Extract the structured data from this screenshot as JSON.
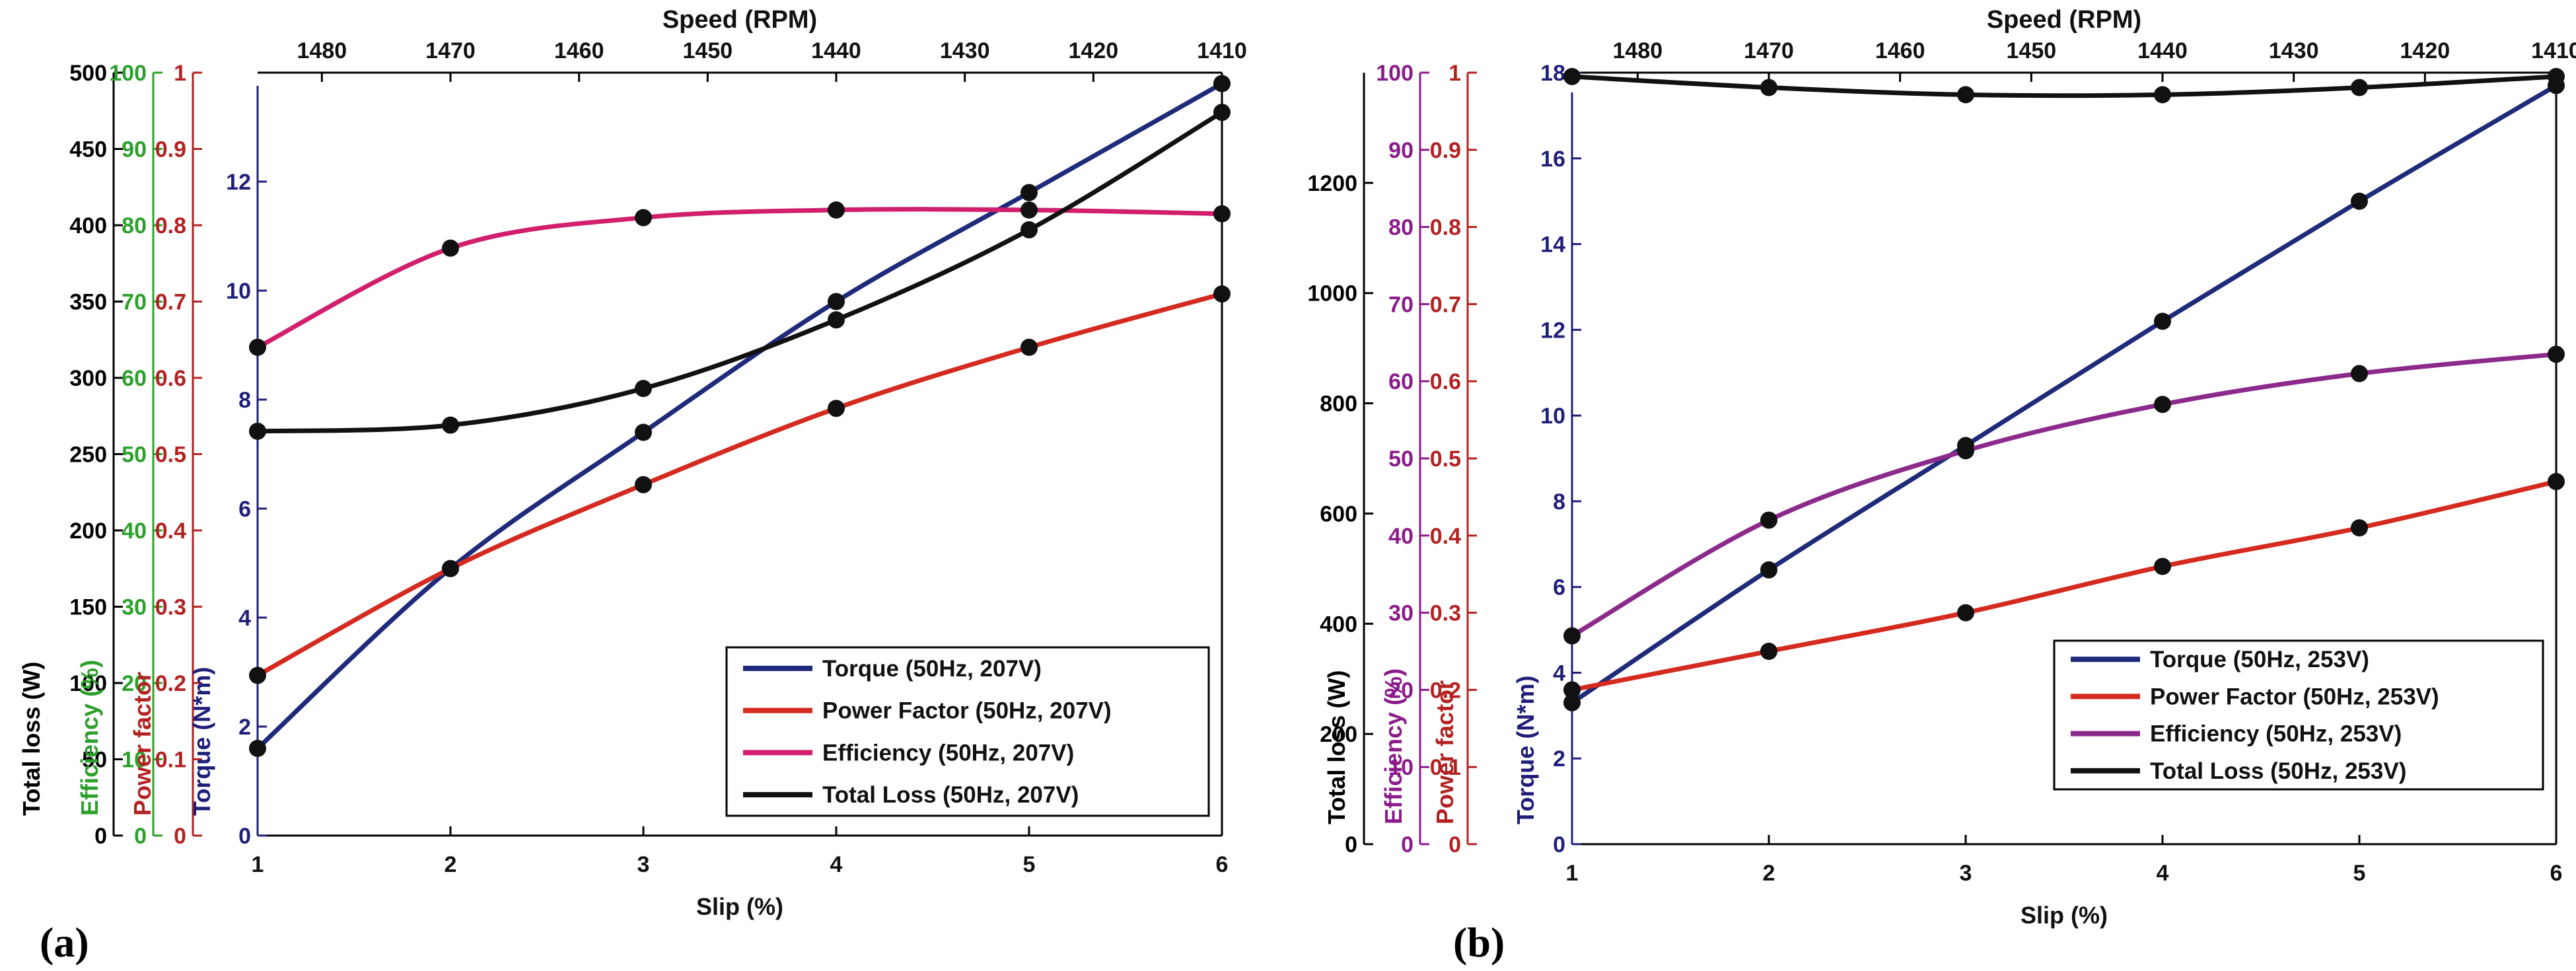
{
  "chart_data": [
    {
      "type": "line",
      "panel_label": "(a)",
      "title": "",
      "xlabel": "Slip (%)",
      "x2label": "Speed (RPM)",
      "xlim": [
        1,
        6
      ],
      "x_ticks": [
        "1",
        "2",
        "3",
        "4",
        "5",
        "6"
      ],
      "x2_ticks": [
        "1480",
        "1470",
        "1460",
        "1450",
        "1440",
        "1430",
        "1420",
        "1410"
      ],
      "axes": [
        {
          "id": "loss",
          "label": "Total loss (W)",
          "color": "#000000",
          "ylim": [
            0,
            500
          ],
          "ticks": [
            "0",
            "50",
            "100",
            "150",
            "200",
            "250",
            "300",
            "350",
            "400",
            "450",
            "500"
          ]
        },
        {
          "id": "eff",
          "label": "Efficiency (%)",
          "color": "#2ca02c",
          "ylim": [
            0,
            100
          ],
          "ticks": [
            "0",
            "10",
            "20",
            "30",
            "40",
            "50",
            "60",
            "70",
            "80",
            "90",
            "100"
          ]
        },
        {
          "id": "pf",
          "label": "Power factor",
          "color": "#b22222",
          "ylim": [
            0,
            1
          ],
          "ticks": [
            "0",
            "0.1",
            "0.2",
            "0.3",
            "0.4",
            "0.5",
            "0.6",
            "0.7",
            "0.8",
            "0.9",
            "1"
          ]
        },
        {
          "id": "torque",
          "label": "Torque (N*m)",
          "color": "#1f1f7a",
          "ylim": [
            0,
            14
          ],
          "ticks": [
            "0",
            "2",
            "4",
            "6",
            "8",
            "10",
            "12"
          ]
        }
      ],
      "x": [
        1,
        2,
        3,
        4,
        5,
        6
      ],
      "series": [
        {
          "name": "Torque (50Hz, 207V)",
          "axis": "torque",
          "color": "#1f2a7a",
          "values": [
            1.6,
            4.9,
            7.4,
            9.8,
            11.8,
            13.8
          ]
        },
        {
          "name": "Power Factor (50Hz, 207V)",
          "axis": "pf",
          "color": "#d42a1f",
          "values": [
            0.21,
            0.35,
            0.46,
            0.56,
            0.64,
            0.71
          ]
        },
        {
          "name": "Efficiency (50Hz, 207V)",
          "axis": "eff",
          "color": "#d11f6e",
          "values": [
            64,
            77,
            81,
            82,
            82,
            81.5
          ]
        },
        {
          "name": "Total Loss (50Hz, 207V)",
          "axis": "loss",
          "color": "#111111",
          "values": [
            265,
            269,
            293,
            338,
            397,
            474
          ]
        }
      ],
      "legend_position": "bottom-right"
    },
    {
      "type": "line",
      "panel_label": "(b)",
      "title": "",
      "xlabel": "Slip (%)",
      "x2label": "Speed (RPM)",
      "xlim": [
        1,
        6
      ],
      "x_ticks": [
        "1",
        "2",
        "3",
        "4",
        "5",
        "6"
      ],
      "x2_ticks": [
        "1480",
        "1470",
        "1460",
        "1450",
        "1440",
        "1430",
        "1420",
        "1410"
      ],
      "axes": [
        {
          "id": "loss",
          "label": "Total loss (W)",
          "color": "#000000",
          "ylim": [
            0,
            1400
          ],
          "ticks": [
            "0",
            "200",
            "400",
            "600",
            "800",
            "1000",
            "1200"
          ]
        },
        {
          "id": "eff",
          "label": "Efficiency (%)",
          "color": "#8b1a8b",
          "ylim": [
            0,
            100
          ],
          "ticks": [
            "0",
            "10",
            "20",
            "30",
            "40",
            "50",
            "60",
            "70",
            "80",
            "90",
            "100"
          ]
        },
        {
          "id": "pf",
          "label": "Power factor",
          "color": "#b22222",
          "ylim": [
            0,
            1
          ],
          "ticks": [
            "0",
            "0.1",
            "0.2",
            "0.3",
            "0.4",
            "0.5",
            "0.6",
            "0.7",
            "0.8",
            "0.9",
            "1"
          ]
        },
        {
          "id": "torque",
          "label": "Torque (N*m)",
          "color": "#1f1f7a",
          "ylim": [
            0,
            18
          ],
          "ticks": [
            "0",
            "2",
            "4",
            "6",
            "8",
            "10",
            "12",
            "14",
            "16",
            "18"
          ]
        }
      ],
      "x": [
        1,
        2,
        3,
        4,
        5,
        6
      ],
      "series": [
        {
          "name": "Torque (50Hz, 253V)",
          "axis": "torque",
          "color": "#1f2a7a",
          "values": [
            3.3,
            6.4,
            9.3,
            12.2,
            15.0,
            17.7
          ]
        },
        {
          "name": "Power Factor (50Hz, 253V)",
          "axis": "pf",
          "color": "#d42a1f",
          "values": [
            0.2,
            0.25,
            0.3,
            0.36,
            0.41,
            0.47
          ]
        },
        {
          "name": "Efficiency (50Hz, 253V)",
          "axis": "eff",
          "color": "#8b2a8b",
          "values": [
            27,
            42,
            51,
            57,
            61,
            63.5
          ]
        },
        {
          "name": "Total Loss (50Hz, 253V)",
          "axis": "loss",
          "color": "#111111",
          "values": [
            1393,
            1373,
            1360,
            1360,
            1373,
            1393
          ]
        }
      ],
      "legend_position": "bottom-right"
    }
  ]
}
